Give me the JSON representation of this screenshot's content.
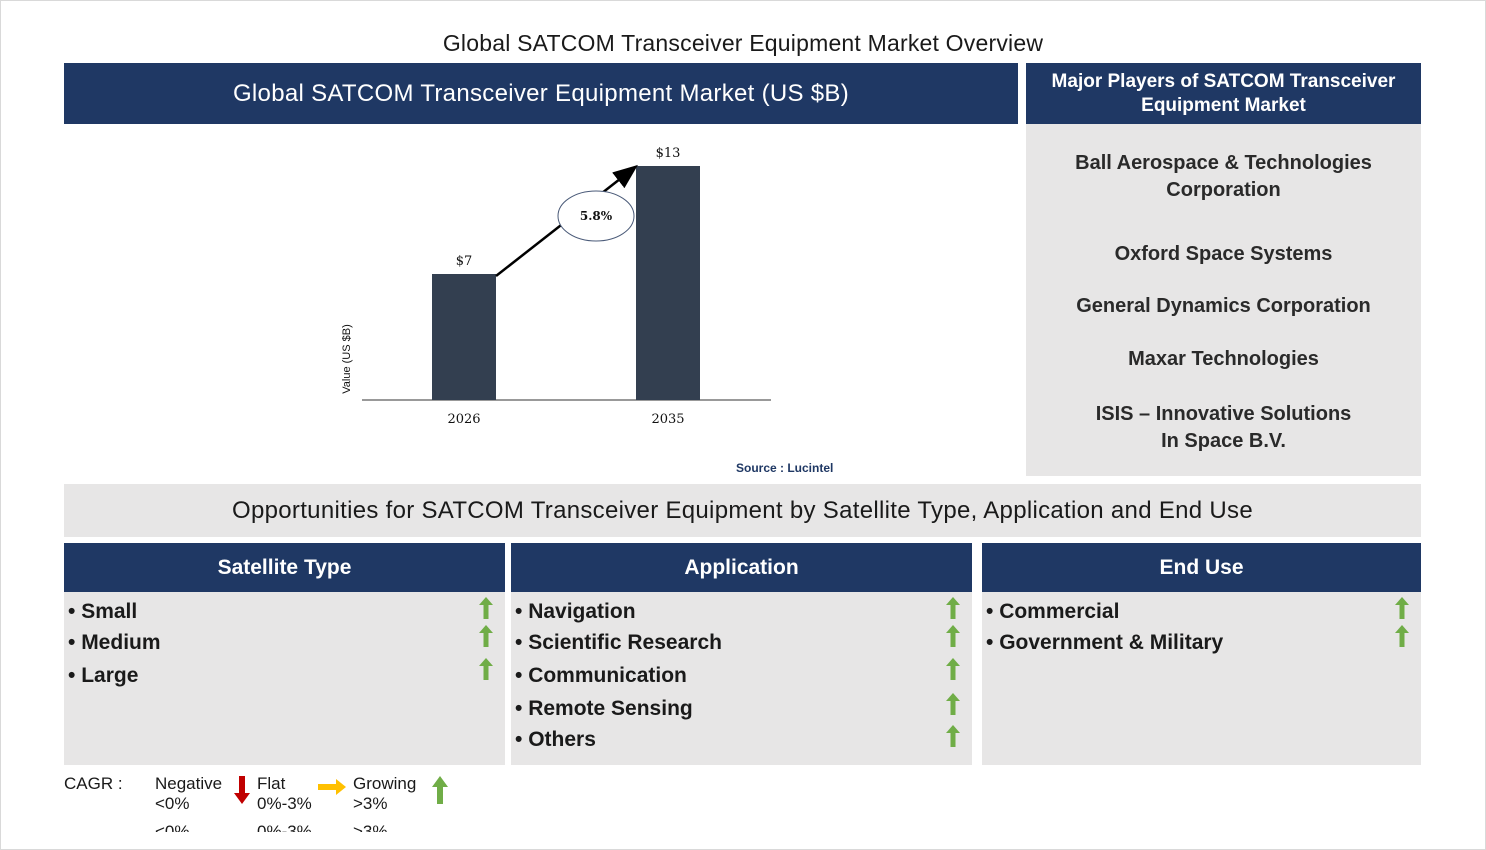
{
  "title": "Global SATCOM Transceiver Equipment Market Overview",
  "chart_panel": {
    "header": "Global SATCOM Transceiver Equipment Market (US $B)",
    "source": "Source : Lucintel"
  },
  "chart_data": {
    "type": "bar",
    "categories": [
      "2026",
      "2035"
    ],
    "values": [
      7,
      13
    ],
    "value_labels": [
      "$7",
      "$13"
    ],
    "ylabel": "Value (US $B)",
    "ylim": [
      0,
      14
    ],
    "grid": false,
    "cagr_annotation": "5.8%",
    "bar_color": "#333f50"
  },
  "players": {
    "header": "Major Players of SATCOM Transceiver Equipment Market",
    "items": [
      [
        "Ball Aerospace & Technologies",
        "Corporation"
      ],
      [
        "Oxford Space Systems"
      ],
      [
        "General Dynamics Corporation"
      ],
      [
        "Maxar Technologies"
      ],
      [
        "ISIS – Innovative Solutions",
        "In Space B.V."
      ]
    ]
  },
  "opportunities": {
    "title": "Opportunities for SATCOM Transceiver Equipment by Satellite Type, Application and End Use",
    "segments": [
      {
        "header": "Satellite Type",
        "items": [
          "Small",
          "Medium",
          "Large"
        ],
        "trend": [
          "growing",
          "growing",
          "growing"
        ]
      },
      {
        "header": "Application",
        "items": [
          "Navigation",
          "Scientific Research",
          "Communication",
          "Remote Sensing",
          "Others"
        ],
        "trend": [
          "growing",
          "growing",
          "growing",
          "growing",
          "growing"
        ]
      },
      {
        "header": "End Use",
        "items": [
          "Commercial",
          "Government & Military"
        ],
        "trend": [
          "growing",
          "growing"
        ]
      }
    ]
  },
  "legend": {
    "label": "CAGR :",
    "negative": {
      "name": "Negative",
      "range": "<0%",
      "icon": "red-down-arrow-icon"
    },
    "flat": {
      "name": "Flat",
      "range": "0%-3%",
      "icon": "yellow-right-arrow-icon"
    },
    "growing": {
      "name": "Growing",
      "range": ">3%",
      "icon": "green-up-arrow-icon"
    }
  },
  "colors": {
    "navy": "#1f3864",
    "panel_gray": "#e7e6e6",
    "bar": "#333f50",
    "growing": "#70ad47",
    "negative": "#c00000",
    "flat": "#ffc000"
  }
}
